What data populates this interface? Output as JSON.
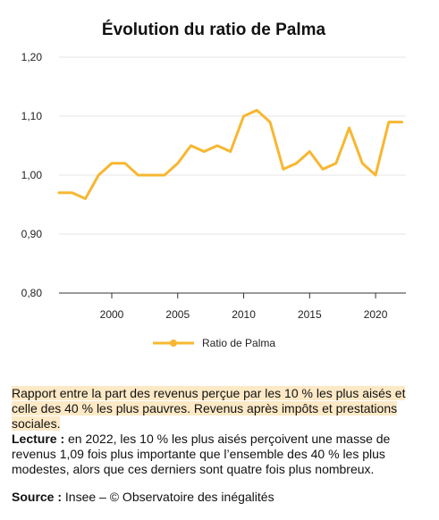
{
  "chart_data": {
    "type": "line",
    "title": "Évolution du ratio de Palma",
    "x": [
      1996,
      1997,
      1998,
      1999,
      2000,
      2001,
      2002,
      2003,
      2004,
      2005,
      2006,
      2007,
      2008,
      2009,
      2010,
      2011,
      2012,
      2013,
      2014,
      2015,
      2016,
      2017,
      2018,
      2019,
      2020,
      2021,
      2022
    ],
    "series": [
      {
        "name": "Ratio de Palma",
        "values": [
          0.97,
          0.97,
          0.96,
          1.0,
          1.02,
          1.02,
          1.0,
          1.0,
          1.0,
          1.02,
          1.05,
          1.04,
          1.05,
          1.04,
          1.1,
          1.11,
          1.09,
          1.01,
          1.02,
          1.04,
          1.01,
          1.02,
          1.08,
          1.02,
          1.0,
          1.09,
          1.09
        ]
      }
    ],
    "xlim": [
      1996,
      2022.3
    ],
    "ylim": [
      0.8,
      1.2
    ],
    "x_ticks": [
      "2000",
      "2005",
      "2010",
      "2015",
      "2020"
    ],
    "y_ticks": [
      "0,80",
      "0,90",
      "1,00",
      "1,10",
      "1,20"
    ],
    "grid": "horizontal",
    "legend": "bottom-center",
    "color": "#f7b731"
  },
  "notes": {
    "description": "Rapport entre la part des revenus perçue par les 10 % les plus aisés et celle des 40 % les plus pauvres. Revenus après impôts et prestations sociales.",
    "lecture_label": "Lecture :",
    "lecture_text": " en 2022, les 10 % les plus aisés perçoivent une masse de revenus 1,09 fois plus importante que l’ensemble des 40 % les plus modestes, alors que ces derniers sont quatre fois plus nombreux.",
    "source_label": "Source :",
    "source_text": " Insee – © Observatoire des inégalités"
  }
}
